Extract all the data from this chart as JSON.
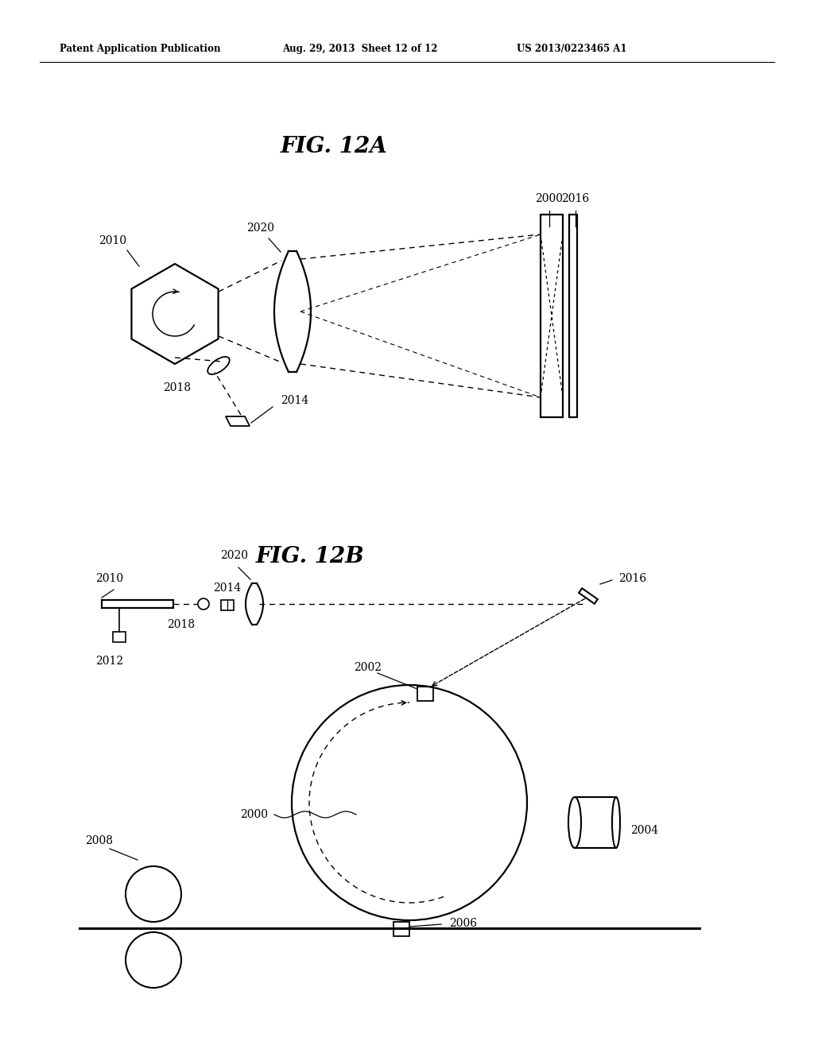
{
  "bg_color": "#ffffff",
  "header_text": "Patent Application Publication",
  "header_date": "Aug. 29, 2013  Sheet 12 of 12",
  "header_patent": "US 2013/0223465 A1",
  "fig12a_title": "FIG. 12A",
  "fig12b_title": "FIG. 12B",
  "label_color": "#000000",
  "line_color": "#000000"
}
